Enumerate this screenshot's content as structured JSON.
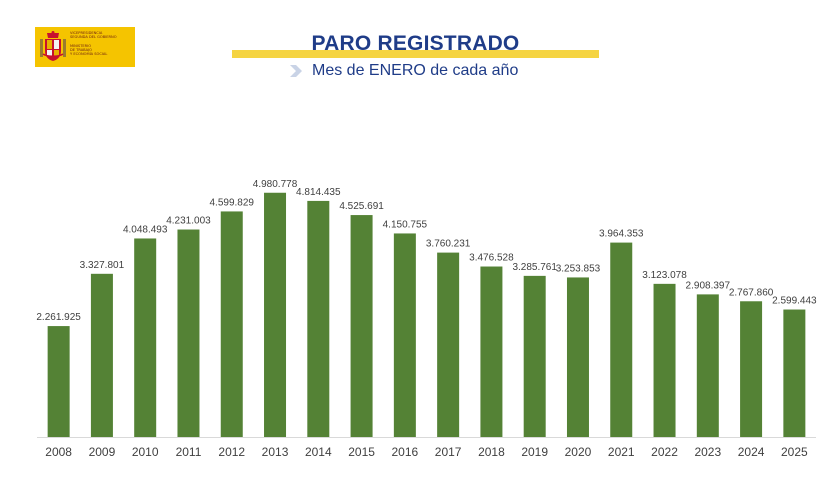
{
  "header": {
    "title": "PARO REGISTRADO",
    "subtitle": "Mes de ENERO de cada año"
  },
  "logo": {
    "lines": [
      "VICEPRESIDENCIA",
      "SEGUNDA DEL GOBIERNO",
      "MINISTERIO",
      "DE TRABAJO",
      "Y ECONOMÍA SOCIAL"
    ],
    "icon": "spain-coat-of-arms-icon",
    "background_color": "#f5c400"
  },
  "colors": {
    "bar": "#548235",
    "title": "#1f3c88",
    "title_bar": "#f5d442",
    "labels": "#404040"
  },
  "chart_data": {
    "type": "bar",
    "title": "PARO REGISTRADO",
    "subtitle": "Mes de ENERO de cada año",
    "xlabel": "",
    "ylabel": "",
    "grid": false,
    "legend": "none",
    "ylim": [
      0,
      5200000
    ],
    "categories": [
      "2008",
      "2009",
      "2010",
      "2011",
      "2012",
      "2013",
      "2014",
      "2015",
      "2016",
      "2017",
      "2018",
      "2019",
      "2020",
      "2021",
      "2022",
      "2023",
      "2024",
      "2025"
    ],
    "values": [
      2261925,
      3327801,
      4048493,
      4231003,
      4599829,
      4980778,
      4814435,
      4525691,
      4150755,
      3760231,
      3476528,
      3285761,
      3253853,
      3964353,
      3123078,
      2908397,
      2767860,
      2599443
    ],
    "value_labels": [
      "2.261.925",
      "3.327.801",
      "4.048.493",
      "4.231.003",
      "4.599.829",
      "4.980.778",
      "4.814.435",
      "4.525.691",
      "4.150.755",
      "3.760.231",
      "3.476.528",
      "3.285.761",
      "3.253.853",
      "3.964.353",
      "3.123.078",
      "2.908.397",
      "2.767.860",
      "2.599.443"
    ]
  }
}
